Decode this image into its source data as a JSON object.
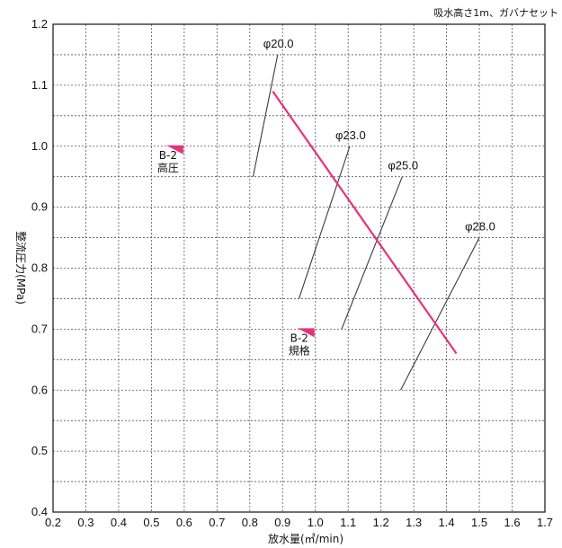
{
  "chart_data": {
    "type": "line",
    "note": "吸水高さ1m、ガバナセット",
    "xlabel": "放水量(㎥/min)",
    "ylabel": "整流圧力(MPa)",
    "xlim": [
      0.2,
      1.7
    ],
    "ylim": [
      0.4,
      1.2
    ],
    "x_ticks": [
      "0.2",
      "0.3",
      "0.4",
      "0.5",
      "0.6",
      "0.7",
      "0.8",
      "0.9",
      "1.0",
      "1.1",
      "1.2",
      "1.3",
      "1.4",
      "1.5",
      "1.6",
      "1.7"
    ],
    "y_ticks": [
      "0.4",
      "0.5",
      "0.6",
      "0.7",
      "0.8",
      "0.9",
      "1.0",
      "1.1",
      "1.2"
    ],
    "grid": true,
    "pump_curve": {
      "color": "#e5337a",
      "points": [
        [
          0.87,
          1.09
        ],
        [
          1.43,
          0.66
        ]
      ]
    },
    "nozzle_lines": [
      {
        "label": "φ20.0",
        "points": [
          [
            0.81,
            0.95
          ],
          [
            0.885,
            1.15
          ]
        ]
      },
      {
        "label": "φ23.0",
        "points": [
          [
            0.95,
            0.75
          ],
          [
            1.105,
            1.0
          ]
        ]
      },
      {
        "label": "φ25.0",
        "points": [
          [
            1.08,
            0.7
          ],
          [
            1.265,
            0.95
          ]
        ]
      },
      {
        "label": "φ28.0",
        "points": [
          [
            1.26,
            0.6
          ],
          [
            1.5,
            0.85
          ]
        ]
      }
    ],
    "markers": [
      {
        "line1": "B-2",
        "line2": "高圧",
        "x": 0.6,
        "y": 1.0,
        "color": "#e5337a"
      },
      {
        "line1": "B-2",
        "line2": "規格",
        "x": 1.0,
        "y": 0.7,
        "color": "#e5337a"
      }
    ]
  }
}
